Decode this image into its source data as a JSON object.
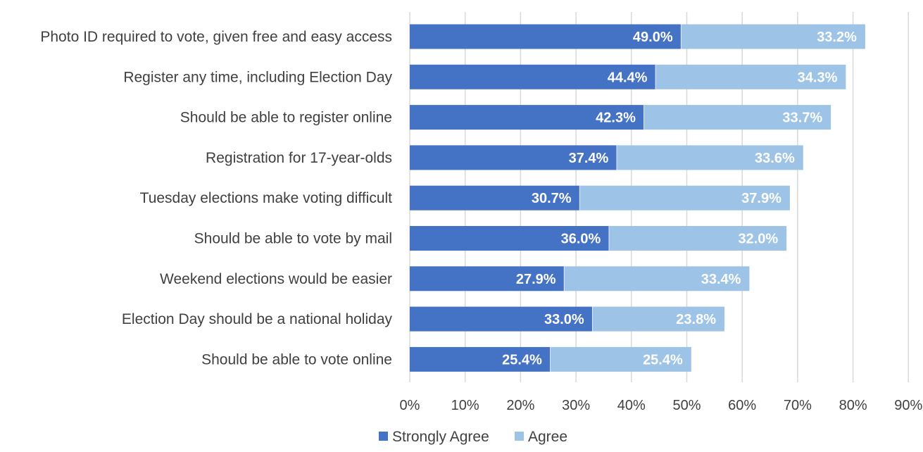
{
  "chart_data": {
    "type": "bar",
    "orientation": "horizontal",
    "stacked": true,
    "categories": [
      "Photo ID required to vote, given free and easy access",
      "Register any time, including Election Day",
      "Should be able to register online",
      "Registration for 17-year-olds",
      "Tuesday elections make voting difficult",
      "Should be able to vote by mail",
      "Weekend elections would be easier",
      "Election Day should be a national holiday",
      "Should be able to vote online"
    ],
    "series": [
      {
        "name": "Strongly Agree",
        "color": "#4472c4",
        "values": [
          49.0,
          44.4,
          42.3,
          37.4,
          30.7,
          36.0,
          27.9,
          33.0,
          25.4
        ],
        "labels": [
          "49.0%",
          "44.4%",
          "42.3%",
          "37.4%",
          "30.7%",
          "36.0%",
          "27.9%",
          "33.0%",
          "25.4%"
        ]
      },
      {
        "name": "Agree",
        "color": "#9dc3e6",
        "values": [
          33.2,
          34.3,
          33.7,
          33.6,
          37.9,
          32.0,
          33.4,
          23.8,
          25.4
        ],
        "labels": [
          "33.2%",
          "34.3%",
          "33.7%",
          "33.6%",
          "37.9%",
          "32.0%",
          "33.4%",
          "23.8%",
          "25.4%"
        ]
      }
    ],
    "xlim": [
      0,
      90
    ],
    "xticks": [
      0,
      10,
      20,
      30,
      40,
      50,
      60,
      70,
      80,
      90
    ],
    "xtick_labels": [
      "0%",
      "10%",
      "20%",
      "30%",
      "40%",
      "50%",
      "60%",
      "70%",
      "80%",
      "90%"
    ],
    "grid": true,
    "legend_position": "bottom",
    "title": "",
    "xlabel": "",
    "ylabel": ""
  }
}
